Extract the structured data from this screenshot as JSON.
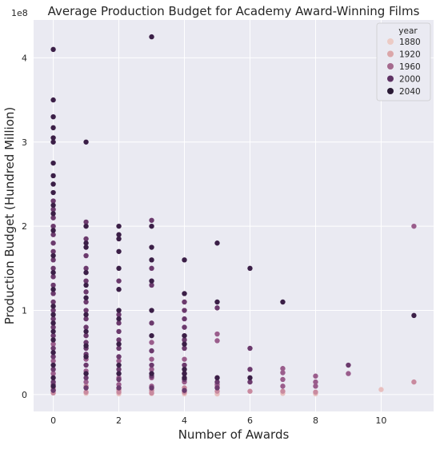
{
  "chart_data": {
    "type": "scatter",
    "title": "Average Production Budget for Academy Award-Winning Films",
    "xlabel": "Number of Awards",
    "ylabel": "Production Budget (Hundred Million)",
    "y_offset_label": "1e8",
    "xlim": [
      -0.6,
      11.6
    ],
    "ylim": [
      -20000000,
      445000000
    ],
    "x_ticks": [
      0,
      2,
      4,
      6,
      8,
      10
    ],
    "y_ticks": [
      0,
      100000000,
      200000000,
      300000000,
      400000000
    ],
    "y_tick_labels": [
      "0",
      "1",
      "2",
      "3",
      "4"
    ],
    "grid": true,
    "legend": {
      "title": "year",
      "position": "top-right",
      "entries": [
        {
          "label": "1880",
          "color": "#eccbc5"
        },
        {
          "label": "1920",
          "color": "#dba6a9"
        },
        {
          "label": "1960",
          "color": "#a56a8e"
        },
        {
          "label": "2000",
          "color": "#5e3264"
        },
        {
          "label": "2040",
          "color": "#2a1a35"
        }
      ]
    },
    "series": [
      {
        "color": "#e8bfbf",
        "points": [
          [
            1,
            1500000
          ],
          [
            2,
            1000000
          ],
          [
            3,
            1200000
          ],
          [
            4,
            1000000
          ],
          [
            5,
            800000
          ],
          [
            7,
            1500000
          ],
          [
            8,
            1000000
          ],
          [
            10,
            6000000
          ]
        ]
      },
      {
        "color": "#c98a9f",
        "points": [
          [
            0,
            2000000
          ],
          [
            0,
            5000000
          ],
          [
            0,
            8000000
          ],
          [
            1,
            3000000
          ],
          [
            1,
            10000000
          ],
          [
            2,
            3000000
          ],
          [
            2,
            6000000
          ],
          [
            3,
            2000000
          ],
          [
            3,
            5000000
          ],
          [
            4,
            3000000
          ],
          [
            4,
            8000000
          ],
          [
            5,
            4000000
          ],
          [
            5,
            10000000
          ],
          [
            6,
            4000000
          ],
          [
            7,
            4000000
          ],
          [
            8,
            3000000
          ],
          [
            11,
            15000000
          ]
        ]
      },
      {
        "color": "#9a5d8c",
        "points": [
          [
            0,
            12000000
          ],
          [
            0,
            25000000
          ],
          [
            0,
            40000000
          ],
          [
            0,
            60000000
          ],
          [
            1,
            15000000
          ],
          [
            1,
            28000000
          ],
          [
            1,
            42000000
          ],
          [
            2,
            12000000
          ],
          [
            2,
            20000000
          ],
          [
            2,
            40000000
          ],
          [
            3,
            10000000
          ],
          [
            3,
            20000000
          ],
          [
            3,
            30000000
          ],
          [
            3,
            42000000
          ],
          [
            3,
            62000000
          ],
          [
            4,
            15000000
          ],
          [
            4,
            25000000
          ],
          [
            4,
            42000000
          ],
          [
            5,
            12000000
          ],
          [
            5,
            20000000
          ],
          [
            5,
            64000000
          ],
          [
            5,
            72000000
          ],
          [
            7,
            10000000
          ],
          [
            7,
            18000000
          ],
          [
            7,
            26000000
          ],
          [
            7,
            31000000
          ],
          [
            8,
            10000000
          ],
          [
            8,
            15000000
          ],
          [
            8,
            22000000
          ],
          [
            9,
            25000000
          ],
          [
            11,
            200000000
          ]
        ]
      },
      {
        "color": "#6b3a6d",
        "points": [
          [
            0,
            5000000
          ],
          [
            0,
            15000000
          ],
          [
            0,
            30000000
          ],
          [
            0,
            45000000
          ],
          [
            0,
            55000000
          ],
          [
            0,
            70000000
          ],
          [
            0,
            80000000
          ],
          [
            0,
            90000000
          ],
          [
            0,
            100000000
          ],
          [
            0,
            110000000
          ],
          [
            0,
            120000000
          ],
          [
            0,
            130000000
          ],
          [
            0,
            140000000
          ],
          [
            0,
            150000000
          ],
          [
            0,
            160000000
          ],
          [
            0,
            170000000
          ],
          [
            0,
            180000000
          ],
          [
            0,
            190000000
          ],
          [
            0,
            200000000
          ],
          [
            0,
            210000000
          ],
          [
            0,
            220000000
          ],
          [
            0,
            230000000
          ],
          [
            1,
            8000000
          ],
          [
            1,
            20000000
          ],
          [
            1,
            35000000
          ],
          [
            1,
            48000000
          ],
          [
            1,
            55000000
          ],
          [
            1,
            62000000
          ],
          [
            1,
            70000000
          ],
          [
            1,
            80000000
          ],
          [
            1,
            90000000
          ],
          [
            1,
            100000000
          ],
          [
            1,
            110000000
          ],
          [
            1,
            122000000
          ],
          [
            1,
            135000000
          ],
          [
            1,
            150000000
          ],
          [
            1,
            165000000
          ],
          [
            1,
            185000000
          ],
          [
            1,
            205000000
          ],
          [
            2,
            8000000
          ],
          [
            2,
            18000000
          ],
          [
            2,
            30000000
          ],
          [
            2,
            45000000
          ],
          [
            2,
            55000000
          ],
          [
            2,
            65000000
          ],
          [
            2,
            75000000
          ],
          [
            2,
            85000000
          ],
          [
            2,
            95000000
          ],
          [
            2,
            135000000
          ],
          [
            3,
            8000000
          ],
          [
            3,
            22000000
          ],
          [
            3,
            35000000
          ],
          [
            3,
            52000000
          ],
          [
            3,
            85000000
          ],
          [
            3,
            130000000
          ],
          [
            3,
            150000000
          ],
          [
            3,
            207000000
          ],
          [
            4,
            5000000
          ],
          [
            4,
            18000000
          ],
          [
            4,
            35000000
          ],
          [
            4,
            55000000
          ],
          [
            4,
            65000000
          ],
          [
            4,
            80000000
          ],
          [
            4,
            90000000
          ],
          [
            4,
            100000000
          ],
          [
            4,
            110000000
          ],
          [
            5,
            8000000
          ],
          [
            5,
            15000000
          ],
          [
            5,
            103000000
          ],
          [
            6,
            15000000
          ],
          [
            6,
            30000000
          ],
          [
            6,
            55000000
          ],
          [
            9,
            35000000
          ]
        ]
      },
      {
        "color": "#3b1f47",
        "points": [
          [
            0,
            410000000
          ],
          [
            0,
            350000000
          ],
          [
            0,
            330000000
          ],
          [
            0,
            317000000
          ],
          [
            0,
            305000000
          ],
          [
            0,
            300000000
          ],
          [
            0,
            275000000
          ],
          [
            0,
            260000000
          ],
          [
            0,
            250000000
          ],
          [
            0,
            240000000
          ],
          [
            0,
            225000000
          ],
          [
            0,
            215000000
          ],
          [
            0,
            195000000
          ],
          [
            0,
            165000000
          ],
          [
            0,
            145000000
          ],
          [
            0,
            125000000
          ],
          [
            0,
            105000000
          ],
          [
            0,
            95000000
          ],
          [
            0,
            85000000
          ],
          [
            0,
            75000000
          ],
          [
            0,
            65000000
          ],
          [
            0,
            50000000
          ],
          [
            0,
            35000000
          ],
          [
            0,
            20000000
          ],
          [
            0,
            10000000
          ],
          [
            1,
            300000000
          ],
          [
            1,
            200000000
          ],
          [
            1,
            180000000
          ],
          [
            1,
            175000000
          ],
          [
            1,
            145000000
          ],
          [
            1,
            130000000
          ],
          [
            1,
            115000000
          ],
          [
            1,
            95000000
          ],
          [
            1,
            75000000
          ],
          [
            1,
            58000000
          ],
          [
            1,
            45000000
          ],
          [
            1,
            25000000
          ],
          [
            2,
            200000000
          ],
          [
            2,
            190000000
          ],
          [
            2,
            185000000
          ],
          [
            2,
            170000000
          ],
          [
            2,
            150000000
          ],
          [
            2,
            125000000
          ],
          [
            2,
            100000000
          ],
          [
            2,
            90000000
          ],
          [
            2,
            60000000
          ],
          [
            2,
            35000000
          ],
          [
            2,
            25000000
          ],
          [
            3,
            425000000
          ],
          [
            3,
            200000000
          ],
          [
            3,
            175000000
          ],
          [
            3,
            160000000
          ],
          [
            3,
            135000000
          ],
          [
            3,
            100000000
          ],
          [
            3,
            70000000
          ],
          [
            3,
            25000000
          ],
          [
            4,
            160000000
          ],
          [
            4,
            120000000
          ],
          [
            4,
            70000000
          ],
          [
            4,
            60000000
          ],
          [
            4,
            30000000
          ],
          [
            4,
            25000000
          ],
          [
            4,
            20000000
          ],
          [
            5,
            180000000
          ],
          [
            5,
            110000000
          ],
          [
            5,
            20000000
          ],
          [
            6,
            150000000
          ],
          [
            6,
            20000000
          ],
          [
            7,
            110000000
          ],
          [
            11,
            94000000
          ]
        ]
      }
    ]
  }
}
